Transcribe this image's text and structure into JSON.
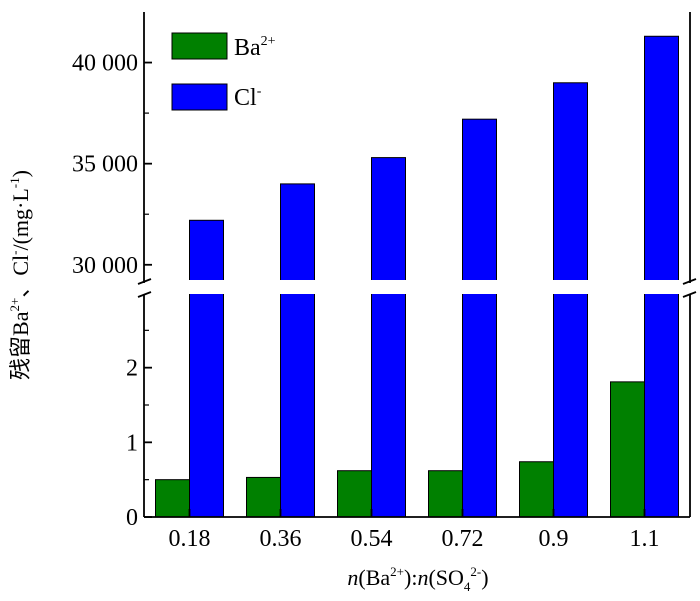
{
  "chart_data": {
    "type": "bar",
    "y_axis_break": true,
    "categories": [
      "0.18",
      "0.36",
      "0.54",
      "0.72",
      "0.9",
      "1.1"
    ],
    "series": [
      {
        "name": "Ba2+",
        "color": "#008000",
        "values": [
          0.5,
          0.53,
          0.62,
          0.62,
          0.74,
          1.81
        ]
      },
      {
        "name": "Cl-",
        "color": "#0000ff",
        "values": [
          32200,
          34000,
          35300,
          37200,
          39000,
          41300
        ]
      }
    ],
    "legend": {
      "position": "top-left",
      "items": [
        {
          "base": "Ba",
          "sup": "2+"
        },
        {
          "base": "Cl",
          "sup": "-"
        }
      ]
    },
    "ylabel": {
      "text": "残留Ba",
      "sup1": "2+",
      "mid": "、Cl",
      "sup2": "-",
      "tail": "/(mg·L",
      "sup3": "-1",
      "close": ")"
    },
    "xlabel": {
      "n1": "n",
      "p1": "(Ba",
      "sup1": "2+",
      "mid": "):",
      "n2": "n",
      "p2": "(SO",
      "sub": "4",
      "sup2": "2-",
      "close": ")"
    },
    "ylim_lower": [
      0,
      3
    ],
    "ylim_upper": [
      29000,
      42500
    ],
    "yticks_lower": [
      0,
      1,
      2
    ],
    "yticks_upper": [
      30000,
      35000,
      40000
    ],
    "ytick_labels_lower": [
      "0",
      "1",
      "2"
    ],
    "ytick_labels_upper": [
      "30 000",
      "35 000",
      "40 000"
    ]
  }
}
